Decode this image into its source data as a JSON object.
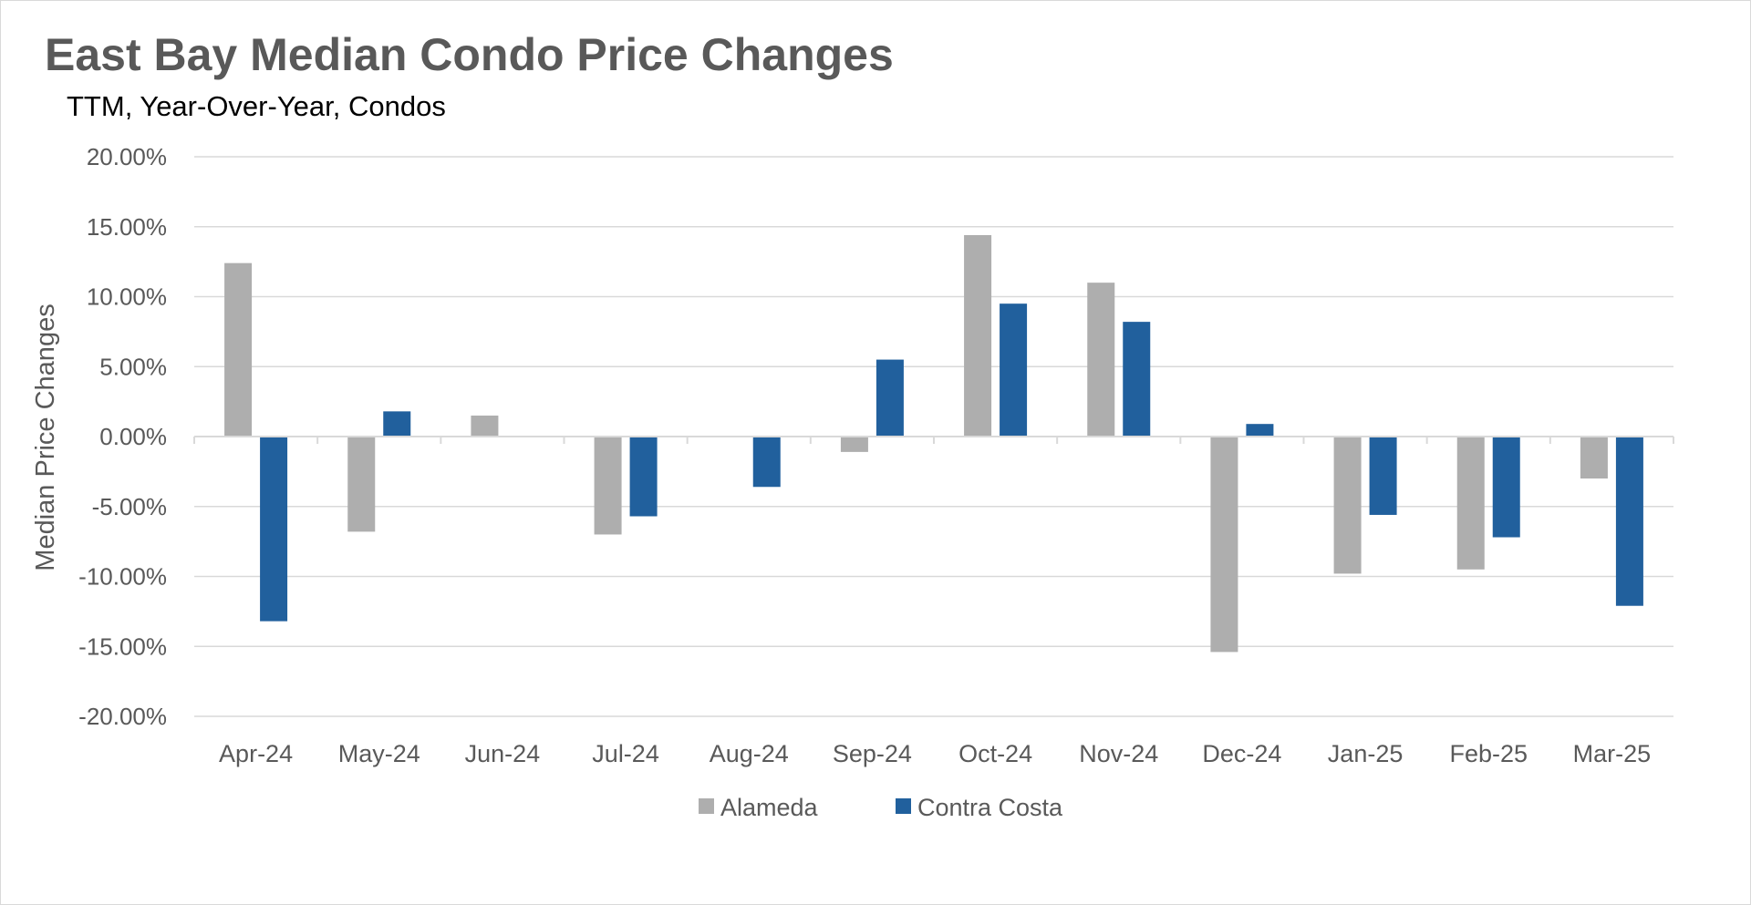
{
  "chart_data": {
    "type": "bar",
    "title": "East Bay Median Condo Price Changes",
    "subtitle": "TTM, Year-Over-Year,  Condos",
    "xlabel": "",
    "ylabel": "Median Price Changes",
    "ylim": [
      -20,
      20
    ],
    "yticks": [
      20,
      15,
      10,
      5,
      0,
      -5,
      -10,
      -15,
      -20
    ],
    "ytick_labels": [
      "20.00%",
      "15.00%",
      "10.00%",
      "5.00%",
      "0.00%",
      "-5.00%",
      "-10.00%",
      "-15.00%",
      "-20.00%"
    ],
    "grid": true,
    "legend_position": "bottom",
    "categories": [
      "Apr-24",
      "May-24",
      "Jun-24",
      "Jul-24",
      "Aug-24",
      "Sep-24",
      "Oct-24",
      "Nov-24",
      "Dec-24",
      "Jan-25",
      "Feb-25",
      "Mar-25"
    ],
    "series": [
      {
        "name": "Alameda",
        "color": "#aeaeae",
        "values": [
          12.4,
          -6.8,
          1.5,
          -7.0,
          0.0,
          -1.1,
          14.4,
          11.0,
          -15.4,
          -9.8,
          -9.5,
          -3.0
        ]
      },
      {
        "name": "Contra Costa",
        "color": "#21609d",
        "values": [
          -13.2,
          1.8,
          0.0,
          -5.7,
          -3.6,
          5.5,
          9.5,
          8.2,
          0.9,
          -5.6,
          -7.2,
          -12.1
        ]
      }
    ]
  }
}
